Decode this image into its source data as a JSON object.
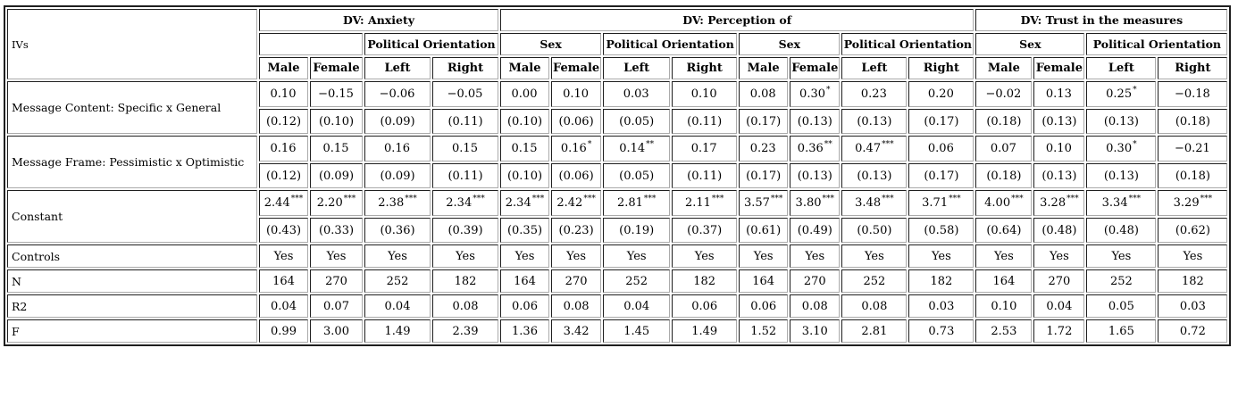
{
  "table": {
    "ivs_label": "IVs",
    "dv_groups": [
      {
        "label": "DV: Anxiety",
        "subgroups": [
          {
            "label": "",
            "cols": [
              "Male",
              "Female"
            ]
          },
          {
            "label": "Political Orientation",
            "cols": [
              "Left",
              "Right"
            ]
          }
        ]
      },
      {
        "label": "DV: Perception of",
        "subgroups": [
          {
            "label": "Sex",
            "cols": [
              "Male",
              "Female"
            ]
          },
          {
            "label": "Political Orientation",
            "cols": [
              "Left",
              "Right"
            ]
          },
          {
            "label": "Sex",
            "cols": [
              "Male",
              "Female"
            ]
          },
          {
            "label": "Political Orientation",
            "cols": [
              "Left",
              "Right"
            ]
          }
        ]
      },
      {
        "label": "DV: Trust in the measures",
        "subgroups": [
          {
            "label": "Sex",
            "cols": [
              "Male",
              "Female"
            ]
          },
          {
            "label": "Political Orientation",
            "cols": [
              "Left",
              "Right"
            ]
          }
        ]
      }
    ],
    "coef_rows": [
      {
        "label": "Message Content: Specific x General",
        "values": [
          "0.10",
          "−0.15",
          "−0.06",
          "−0.05",
          "0.00",
          "0.10",
          "0.03",
          "0.10",
          "0.08",
          "0.30",
          "0.23",
          "0.20",
          "−0.02",
          "0.13",
          "0.25",
          "−0.18"
        ],
        "stars": [
          "",
          "",
          "",
          "",
          "",
          "",
          "",
          "",
          "",
          "*",
          "",
          "",
          "",
          "",
          "*",
          ""
        ],
        "ses": [
          "(0.12)",
          "(0.10)",
          "(0.09)",
          "(0.11)",
          "(0.10)",
          "(0.06)",
          "(0.05)",
          "(0.11)",
          "(0.17)",
          "(0.13)",
          "(0.13)",
          "(0.17)",
          "(0.18)",
          "(0.13)",
          "(0.13)",
          "(0.18)"
        ]
      },
      {
        "label": "Message Frame: Pessimistic x Optimistic",
        "values": [
          "0.16",
          "0.15",
          "0.16",
          "0.15",
          "0.15",
          "0.16",
          "0.14",
          "0.17",
          "0.23",
          "0.36",
          "0.47",
          "0.06",
          "0.07",
          "0.10",
          "0.30",
          "−0.21"
        ],
        "stars": [
          "",
          "",
          "",
          "",
          "",
          "*",
          "**",
          "",
          "",
          "**",
          "***",
          "",
          "",
          "",
          "*",
          ""
        ],
        "ses": [
          "(0.12)",
          "(0.09)",
          "(0.09)",
          "(0.11)",
          "(0.10)",
          "(0.06)",
          "(0.05)",
          "(0.11)",
          "(0.17)",
          "(0.13)",
          "(0.13)",
          "(0.17)",
          "(0.18)",
          "(0.13)",
          "(0.13)",
          "(0.18)"
        ]
      },
      {
        "label": "Constant",
        "values": [
          "2.44",
          "2.20",
          "2.38",
          "2.34",
          "2.34",
          "2.42",
          "2.81",
          "2.11",
          "3.57",
          "3.80",
          "3.48",
          "3.71",
          "4.00",
          "3.28",
          "3.34",
          "3.29"
        ],
        "stars": [
          "***",
          "***",
          "***",
          "***",
          "***",
          "***",
          "***",
          "***",
          "***",
          "***",
          "***",
          "***",
          "***",
          "***",
          "***",
          "***"
        ],
        "ses": [
          "(0.43)",
          "(0.33)",
          "(0.36)",
          "(0.39)",
          "(0.35)",
          "(0.23)",
          "(0.19)",
          "(0.37)",
          "(0.61)",
          "(0.49)",
          "(0.50)",
          "(0.58)",
          "(0.64)",
          "(0.48)",
          "(0.48)",
          "(0.62)"
        ]
      }
    ],
    "stat_rows": [
      {
        "label": "Controls",
        "values": [
          "Yes",
          "Yes",
          "Yes",
          "Yes",
          "Yes",
          "Yes",
          "Yes",
          "Yes",
          "Yes",
          "Yes",
          "Yes",
          "Yes",
          "Yes",
          "Yes",
          "Yes",
          "Yes"
        ]
      },
      {
        "label": "N",
        "values": [
          "164",
          "270",
          "252",
          "182",
          "164",
          "270",
          "252",
          "182",
          "164",
          "270",
          "252",
          "182",
          "164",
          "270",
          "252",
          "182"
        ]
      },
      {
        "label": "R2",
        "values": [
          "0.04",
          "0.07",
          "0.04",
          "0.08",
          "0.06",
          "0.08",
          "0.04",
          "0.06",
          "0.06",
          "0.08",
          "0.08",
          "0.03",
          "0.10",
          "0.04",
          "0.05",
          "0.03"
        ]
      },
      {
        "label": "F",
        "values": [
          "0.99",
          "3.00",
          "1.49",
          "2.39",
          "1.36",
          "3.42",
          "1.45",
          "1.49",
          "1.52",
          "3.10",
          "2.81",
          "0.73",
          "2.53",
          "1.72",
          "1.65",
          "0.72"
        ]
      }
    ]
  }
}
